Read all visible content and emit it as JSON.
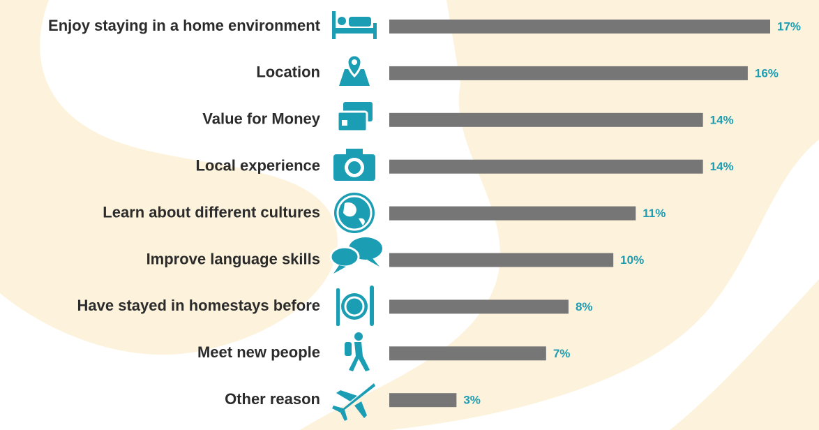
{
  "chart_data": {
    "type": "bar",
    "orientation": "horizontal",
    "categories": [
      "Enjoy staying in a home environment",
      "Location",
      "Value for Money",
      "Local experience",
      "Learn about different cultures",
      "Improve language skills",
      "Have stayed in homestays before",
      "Meet new people",
      "Other reason"
    ],
    "values": [
      17,
      16,
      14,
      14,
      11,
      10,
      8,
      7,
      3
    ],
    "value_labels": [
      "17%",
      "16%",
      "14%",
      "14%",
      "11%",
      "10%",
      "8%",
      "7%",
      "3%"
    ],
    "color": "#767676"
  }
}
